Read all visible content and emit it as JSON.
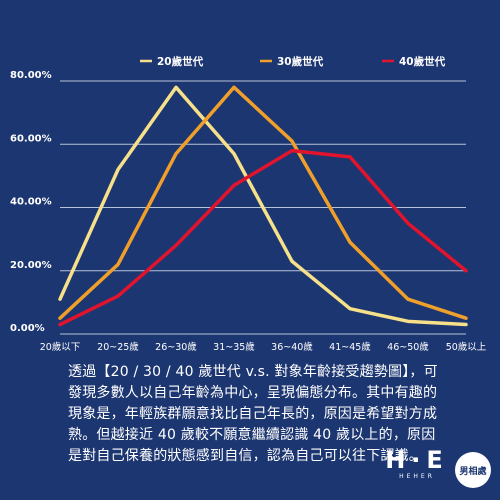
{
  "chart_data": {
    "type": "line",
    "categories": [
      "20歲以下",
      "20~25歲",
      "26~30歲",
      "31~35歲",
      "36~40歲",
      "41~45歲",
      "46~50歲",
      "50歲以上"
    ],
    "ylim": [
      0,
      80
    ],
    "yticks": [
      "0.00%",
      "20.00%",
      "40.00%",
      "60.00%",
      "80.00%"
    ],
    "legend_position": "top",
    "grid": true,
    "series": [
      {
        "name": "20歲世代",
        "color": "#f7e08a",
        "values": [
          11,
          52,
          78,
          57,
          23,
          8,
          4,
          3
        ]
      },
      {
        "name": "30歲世代",
        "color": "#f0a02a",
        "values": [
          5,
          22,
          57,
          78,
          61,
          29,
          11,
          5
        ]
      },
      {
        "name": "40歲世代",
        "color": "#e2142d",
        "values": [
          3,
          12,
          28,
          47,
          58,
          56,
          35,
          20
        ]
      }
    ]
  },
  "caption": "透過【20 / 30 / 40 歲世代 v.s. 對象年齡接受趨勢圖】，可發現多數人以自己年齡為中心，呈現偏態分布。其中有趣的現象是，年輕族群願意找比自己年長的，原因是希望對方成熟。但越接近 40 歲較不願意繼續認識 40 歲以上的，原因是對自己保養的狀態感到自信，認為自己可以往下認識。",
  "logos": {
    "he_mark": "H·E",
    "he_sub": "HEHER",
    "circle_text": "男相處"
  },
  "colors": {
    "background": "#1c3671",
    "grid": "#b8c2d8",
    "text": "#ffffff"
  }
}
